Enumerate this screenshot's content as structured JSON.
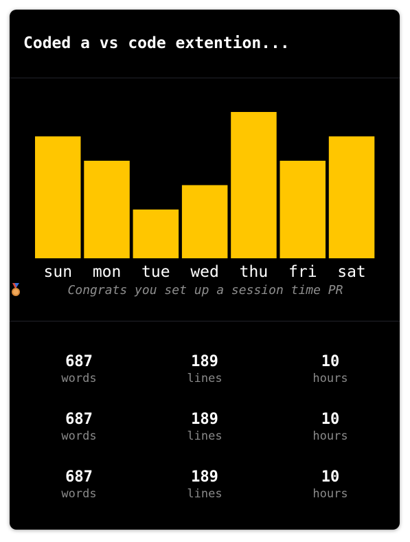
{
  "card": {
    "title": "Coded a vs code extention..."
  },
  "chart_data": {
    "type": "bar",
    "categories": [
      "sun",
      "mon",
      "tue",
      "wed",
      "thu",
      "fri",
      "sat"
    ],
    "values": [
      5,
      4,
      2,
      3,
      6,
      4,
      5
    ],
    "ylim": [
      0,
      6
    ],
    "grid": false,
    "bar_color": "#ffc600"
  },
  "congrats": {
    "icon": "medal-icon",
    "text": "Congrats you set up a session time PR"
  },
  "stats": [
    [
      {
        "value": "687",
        "label": "words"
      },
      {
        "value": "189",
        "label": "lines"
      },
      {
        "value": "10",
        "label": "hours"
      }
    ],
    [
      {
        "value": "687",
        "label": "words"
      },
      {
        "value": "189",
        "label": "lines"
      },
      {
        "value": "10",
        "label": "hours"
      }
    ],
    [
      {
        "value": "687",
        "label": "words"
      },
      {
        "value": "189",
        "label": "lines"
      },
      {
        "value": "10",
        "label": "hours"
      }
    ]
  ],
  "colors": {
    "background": "#000000",
    "accent": "#ffc600",
    "muted_text": "#8a8a8a"
  }
}
